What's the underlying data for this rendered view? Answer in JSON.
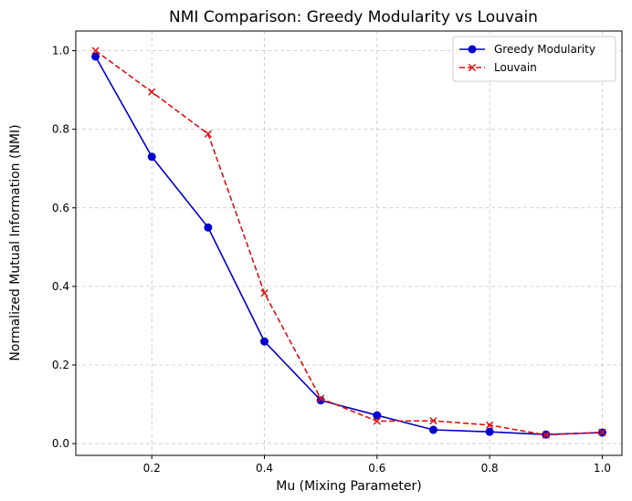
{
  "chart_data": {
    "type": "line",
    "title": "NMI Comparison: Greedy Modularity vs Louvain",
    "xlabel": "Mu (Mixing Parameter)",
    "ylabel": "Normalized Mutual Information (NMI)",
    "xlim": [
      0.065,
      1.035
    ],
    "ylim": [
      -0.03,
      1.05
    ],
    "xticks": [
      0.2,
      0.4,
      0.6,
      0.8,
      1.0
    ],
    "xtick_labels": [
      "0.2",
      "0.4",
      "0.6",
      "0.8",
      "1.0"
    ],
    "yticks": [
      0.0,
      0.2,
      0.4,
      0.6,
      0.8,
      1.0
    ],
    "ytick_labels": [
      "0.0",
      "0.2",
      "0.4",
      "0.6",
      "0.8",
      "1.0"
    ],
    "grid": true,
    "legend_position": "top-right",
    "x": [
      0.1,
      0.2,
      0.3,
      0.4,
      0.5,
      0.6,
      0.7,
      0.8,
      0.9,
      1.0
    ],
    "series": [
      {
        "name": "Greedy Modularity",
        "values": [
          0.985,
          0.73,
          0.55,
          0.26,
          0.11,
          0.072,
          0.035,
          0.03,
          0.023,
          0.028
        ],
        "color": "#0000cc",
        "line_style": "solid",
        "marker": "circle"
      },
      {
        "name": "Louvain",
        "values": [
          1.0,
          0.895,
          0.788,
          0.383,
          0.115,
          0.057,
          0.058,
          0.047,
          0.022,
          0.029
        ],
        "color": "#dd1111",
        "line_style": "dashed",
        "marker": "x"
      }
    ]
  }
}
